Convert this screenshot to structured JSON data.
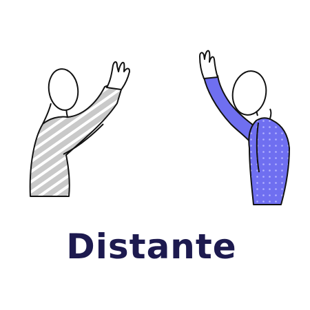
{
  "caption": "Distante",
  "colors": {
    "caption": "#1d1a4f",
    "outline": "#111111",
    "left_shirt": "#c9c9c9",
    "left_shirt_stripe": "#ffffff",
    "right_shirt": "#6f6ff0",
    "right_shirt_dots": "#b3b3ff",
    "face": "#ffffff"
  },
  "icons": {
    "left_figure": "waving-person-gray-striped",
    "right_figure": "waving-person-blue-dotted"
  }
}
